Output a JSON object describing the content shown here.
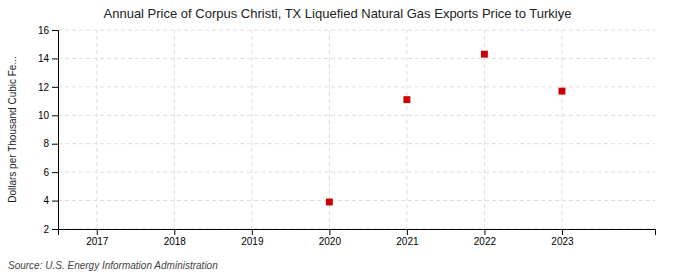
{
  "chart_data": {
    "type": "scatter",
    "title": "Annual Price of Corpus Christi, TX Liquefied Natural Gas Exports Price to Turkiye",
    "ylabel": "Dollars per Thousand Cubic Fe...",
    "annotations": [
      "Source: U.S. Energy Information Administration"
    ],
    "x": [
      2020,
      2021,
      2022,
      2023
    ],
    "values": [
      3.9,
      11.1,
      14.3,
      11.7
    ],
    "color": "#cc0000",
    "marker": "square",
    "xlim": [
      2016.5,
      2024.2
    ],
    "xticks": [
      2017,
      2018,
      2019,
      2020,
      2021,
      2022,
      2023
    ],
    "ylim": [
      2,
      16
    ],
    "yticks": [
      2,
      4,
      6,
      8,
      10,
      12,
      14,
      16
    ],
    "grid": true
  }
}
